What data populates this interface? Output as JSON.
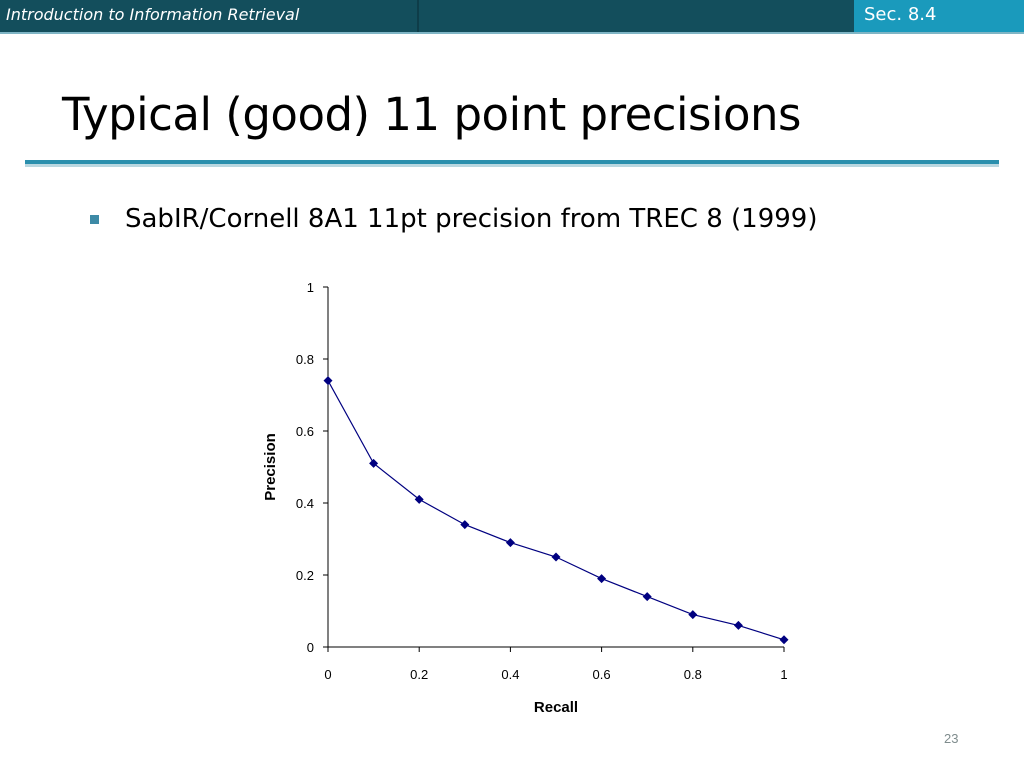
{
  "header": {
    "course_title": "Introduction to Information Retrieval",
    "section": "Sec. 8.4",
    "bar_color": "#134e5c",
    "section_color": "#1a9abc"
  },
  "slide": {
    "title": "Typical (good) 11 point precisions",
    "bullet": "SabIR/Cornell 8A1 11pt precision from TREC 8 (1999)",
    "page_number": "23"
  },
  "chart_data": {
    "type": "line",
    "title": "",
    "xlabel": "Recall",
    "ylabel": "Precision",
    "xlim": [
      0,
      1
    ],
    "ylim": [
      0,
      1
    ],
    "x_ticks": [
      "0",
      "0.2",
      "0.4",
      "0.6",
      "0.8",
      "1"
    ],
    "y_ticks": [
      "0",
      "0.2",
      "0.4",
      "0.6",
      "0.8",
      "1"
    ],
    "x": [
      0,
      0.1,
      0.2,
      0.3,
      0.4,
      0.5,
      0.6,
      0.7,
      0.8,
      0.9,
      1.0
    ],
    "series": [
      {
        "values": [
          0.74,
          0.51,
          0.41,
          0.34,
          0.29,
          0.25,
          0.19,
          0.14,
          0.09,
          0.06,
          0.02
        ],
        "color": "#000080",
        "marker": "diamond"
      }
    ],
    "grid": false,
    "legend": "none"
  }
}
